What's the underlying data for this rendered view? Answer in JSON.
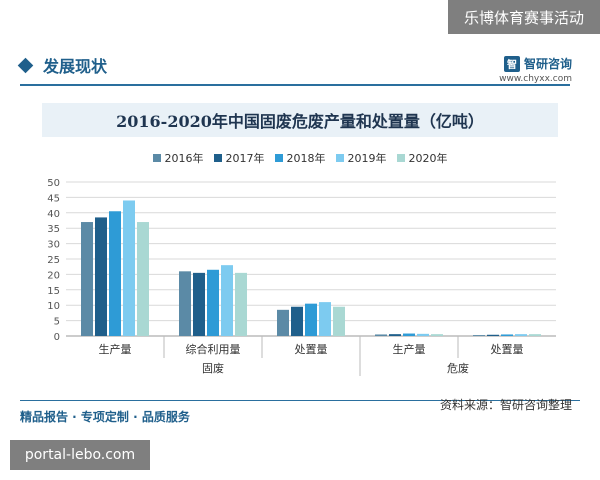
{
  "overlay_top": "乐博体育赛事活动",
  "section": {
    "title": "发展现状"
  },
  "brand": {
    "logo_glyph": "智",
    "name": "智研咨询",
    "url": "www.chyxx.com"
  },
  "footer": {
    "left": "精品报告 · 专项定制 · 品质服务",
    "source": "资料来源：智研咨询整理"
  },
  "overlay_bottom": "portal-lebo.com",
  "chart_data": {
    "type": "bar",
    "title": "2016-2020年中国固废危废产量和处置量（亿吨）",
    "legend_position": "top",
    "ylim": [
      0,
      50
    ],
    "yticks": [
      0,
      5,
      10,
      15,
      20,
      25,
      30,
      35,
      40,
      45,
      50
    ],
    "grid": true,
    "categories": [
      "生产量",
      "综合利用量",
      "处置量",
      "生产量",
      "处置量"
    ],
    "groups": [
      {
        "label": "固废",
        "span": [
          0,
          2
        ]
      },
      {
        "label": "危废",
        "span": [
          3,
          4
        ]
      }
    ],
    "series": [
      {
        "name": "2016年",
        "color": "#5b8aa6",
        "values": [
          37,
          21,
          8.5,
          0.5,
          0.3
        ]
      },
      {
        "name": "2017年",
        "color": "#1f5f8b",
        "values": [
          38.5,
          20.5,
          9.5,
          0.6,
          0.4
        ]
      },
      {
        "name": "2018年",
        "color": "#2e9bd6",
        "values": [
          40.5,
          21.5,
          10.5,
          0.8,
          0.5
        ]
      },
      {
        "name": "2019年",
        "color": "#7dcbf0",
        "values": [
          44,
          23,
          11,
          0.7,
          0.6
        ]
      },
      {
        "name": "2020年",
        "color": "#a9d8d3",
        "values": [
          37,
          20.5,
          9.5,
          0.6,
          0.6
        ]
      }
    ]
  }
}
